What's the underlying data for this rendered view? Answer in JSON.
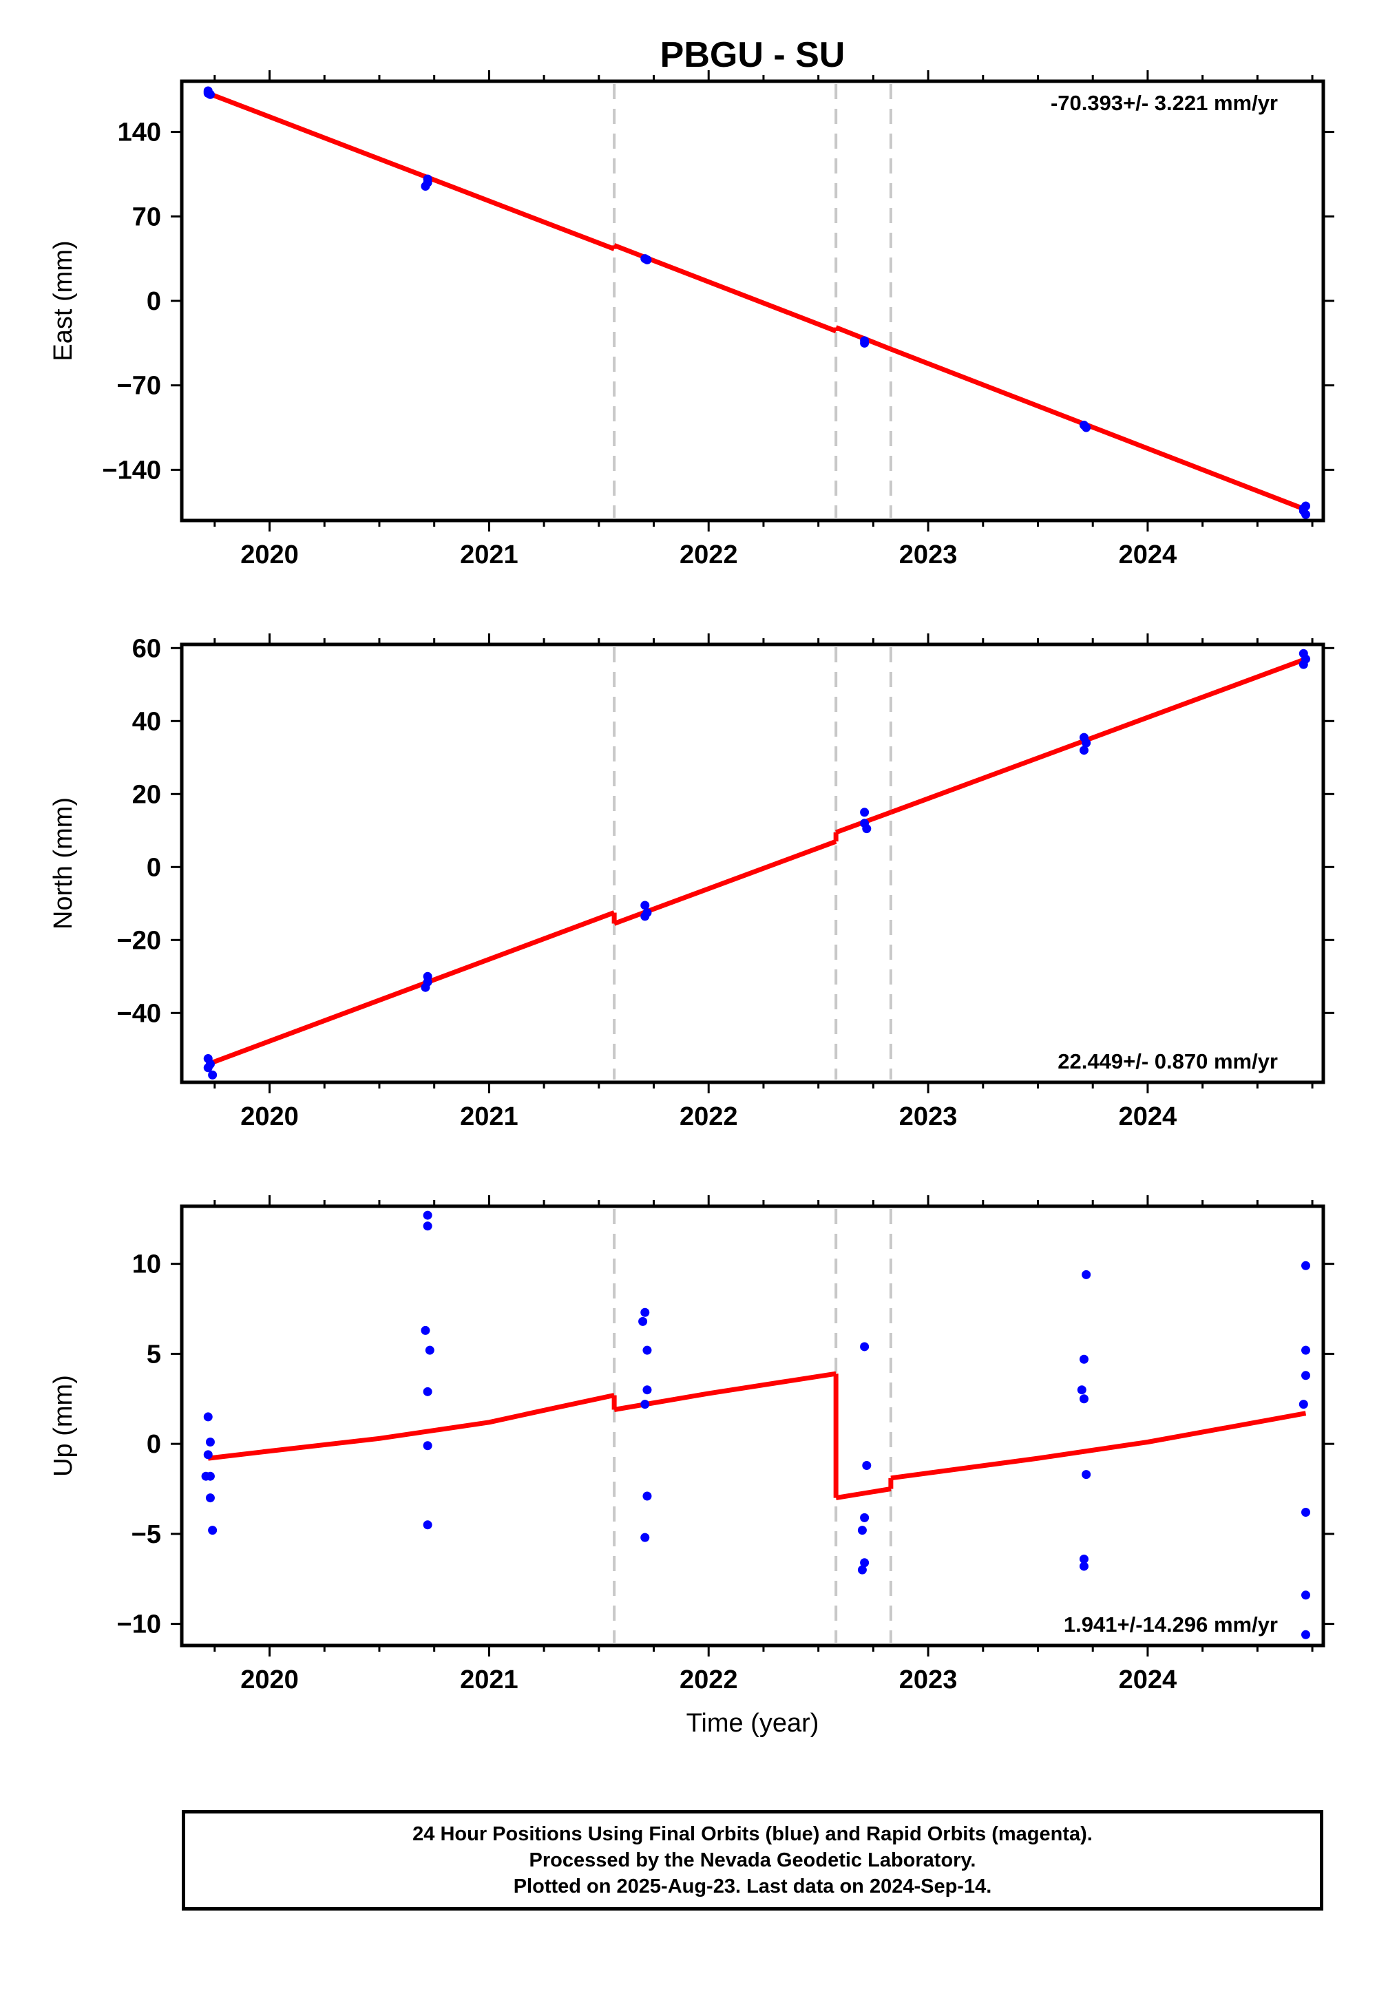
{
  "title": "PBGU - SU",
  "colors": {
    "data_points": "#0000ff",
    "model_line": "#ff0000",
    "offset_lines": "#c8c8c8",
    "frame": "#000000"
  },
  "chart_data": [
    {
      "type": "scatter",
      "ylabel": "East (mm)",
      "xlim": [
        2019.6,
        2024.8
      ],
      "ylim": [
        -182,
        182
      ],
      "xticks": [
        2020,
        2021,
        2022,
        2023,
        2024
      ],
      "yticks": [
        140,
        70,
        0,
        -70,
        -140
      ],
      "ytick_labels": [
        "140",
        "70",
        "0",
        "−70",
        "−140"
      ],
      "grid": false,
      "rate_label": "-70.393+/- 3.221 mm/yr",
      "rate_position": "top-right",
      "offset_epochs": [
        2021.57,
        2022.58,
        2022.83
      ],
      "series": [
        {
          "style": "points",
          "x": [
            2019.72,
            2019.72,
            2019.73,
            2019.72,
            2020.72,
            2020.72,
            2020.71,
            2021.71,
            2021.72,
            2022.71,
            2022.71,
            2023.71,
            2023.72,
            2024.71,
            2024.71,
            2024.72,
            2024.72
          ],
          "y": [
            174,
            172,
            171,
            173,
            101,
            98,
            95,
            35,
            34,
            -33,
            -35,
            -103,
            -105,
            -172,
            -174,
            -177,
            -170
          ]
        },
        {
          "style": "line",
          "segments": [
            {
              "x": [
                2019.72,
                2021.57
              ],
              "y": [
                172,
                43
              ]
            },
            {
              "x": [
                2021.57,
                2022.58
              ],
              "y": [
                46,
                -25
              ]
            },
            {
              "x": [
                2022.58,
                2022.83
              ],
              "y": [
                -22,
                -40
              ]
            },
            {
              "x": [
                2022.83,
                2024.72
              ],
              "y": [
                -40,
                -173
              ]
            }
          ]
        }
      ]
    },
    {
      "type": "scatter",
      "ylabel": "North (mm)",
      "xlim": [
        2019.6,
        2024.8
      ],
      "ylim": [
        -59,
        61
      ],
      "xticks": [
        2020,
        2021,
        2022,
        2023,
        2024
      ],
      "yticks": [
        60,
        40,
        20,
        0,
        -20,
        -40
      ],
      "ytick_labels": [
        "60",
        "40",
        "20",
        "0",
        "−20",
        "−40"
      ],
      "grid": false,
      "rate_label": "22.449+/- 0.870 mm/yr",
      "rate_position": "bottom-right",
      "offset_epochs": [
        2021.57,
        2022.58,
        2022.83
      ],
      "series": [
        {
          "style": "points",
          "x": [
            2019.72,
            2019.73,
            2019.72,
            2019.74,
            2020.72,
            2020.72,
            2020.71,
            2021.71,
            2021.72,
            2021.71,
            2022.71,
            2022.71,
            2022.72,
            2023.71,
            2023.72,
            2023.71,
            2024.71,
            2024.72,
            2024.71
          ],
          "y": [
            -52.5,
            -54,
            -55,
            -57,
            -30,
            -31.5,
            -33,
            -10.5,
            -12.5,
            -13.5,
            15,
            12,
            10.5,
            35.5,
            34,
            32,
            58.5,
            57,
            55.5
          ],
          "note": "blue daily positions"
        },
        {
          "style": "line",
          "segments": [
            {
              "x": [
                2019.72,
                2021.57
              ],
              "y": [
                -54,
                -12.5
              ]
            },
            {
              "x": [
                2021.57,
                2022.58
              ],
              "y": [
                -15.5,
                7
              ]
            },
            {
              "x": [
                2022.58,
                2022.83
              ],
              "y": [
                9.5,
                15
              ]
            },
            {
              "x": [
                2022.83,
                2024.72
              ],
              "y": [
                15,
                57
              ]
            }
          ]
        }
      ]
    },
    {
      "type": "scatter",
      "ylabel": "Up (mm)",
      "xlabel": "Time (year)",
      "xlim": [
        2019.6,
        2024.8
      ],
      "ylim": [
        -11.2,
        13.2
      ],
      "xticks": [
        2020,
        2021,
        2022,
        2023,
        2024
      ],
      "yticks": [
        10,
        5,
        0,
        -5,
        -10
      ],
      "ytick_labels": [
        "10",
        "5",
        "0",
        "−5",
        "−10"
      ],
      "grid": false,
      "rate_label": "1.941+/-14.296 mm/yr",
      "rate_position": "bottom-right",
      "offset_epochs": [
        2021.57,
        2022.58,
        2022.83
      ],
      "series": [
        {
          "style": "points",
          "x": [
            2019.72,
            2019.73,
            2019.72,
            2019.71,
            2019.73,
            2019.73,
            2019.74,
            2020.72,
            2020.72,
            2020.71,
            2020.73,
            2020.72,
            2020.72,
            2020.72,
            2021.71,
            2021.7,
            2021.72,
            2021.72,
            2021.71,
            2021.72,
            2021.71,
            2022.71,
            2022.72,
            2022.71,
            2022.7,
            2022.71,
            2022.7,
            2023.72,
            2023.71,
            2023.7,
            2023.71,
            2023.72,
            2023.71,
            2023.71,
            2024.72,
            2024.72,
            2024.72,
            2024.71,
            2024.72,
            2024.72,
            2024.72
          ],
          "y": [
            1.5,
            0.1,
            -0.6,
            -1.8,
            -1.8,
            -3,
            -4.8,
            12.7,
            12.1,
            6.3,
            5.2,
            2.9,
            -0.1,
            -4.5,
            7.3,
            6.8,
            5.2,
            3.0,
            2.2,
            -2.9,
            -5.2,
            5.4,
            -1.2,
            -4.1,
            -4.8,
            -6.6,
            -7.0,
            9.4,
            4.7,
            3.0,
            2.5,
            -1.7,
            -6.4,
            -6.8,
            9.9,
            5.2,
            3.8,
            2.2,
            -3.8,
            -8.4,
            -10.6
          ]
        },
        {
          "style": "line",
          "segments": [
            {
              "x": [
                2019.72,
                2020.0,
                2020.5,
                2021.0,
                2021.3,
                2021.57
              ],
              "y": [
                -0.8,
                -0.4,
                0.3,
                1.2,
                2.0,
                2.7
              ]
            },
            {
              "x": [
                2021.57,
                2022.0,
                2022.58
              ],
              "y": [
                1.9,
                2.8,
                3.9
              ]
            },
            {
              "x": [
                2022.58,
                2022.83
              ],
              "y": [
                -3.0,
                -2.5
              ]
            },
            {
              "x": [
                2022.83,
                2023.5,
                2024.0,
                2024.72
              ],
              "y": [
                -1.9,
                -0.8,
                0.1,
                1.7
              ]
            }
          ]
        }
      ]
    }
  ],
  "footer": {
    "line1": "24 Hour Positions Using Final Orbits (blue) and Rapid Orbits (magenta).",
    "line2": "Processed by the Nevada Geodetic Laboratory.",
    "line3": "Plotted on 2025-Aug-23. Last data on 2024-Sep-14."
  }
}
